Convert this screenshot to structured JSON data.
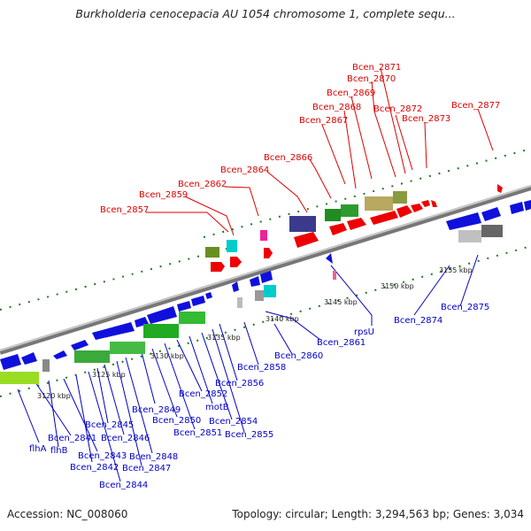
{
  "title": "Burkholderia cenocepacia AU 1054 chromosome 1, complete sequ...",
  "footer": {
    "accession": "Accession: NC_008060",
    "topology": "Topology: circular; Length: 3,294,563 bp; Genes: 3,034"
  },
  "colors": {
    "forward_label": "#dd0000",
    "reverse_label": "#0000cc",
    "backbone": "#909090",
    "tick": "#1e7a1e"
  },
  "kbp_ticks": [
    "3120 kbp",
    "3125 kbp",
    "3130 kbp",
    "3135 kbp",
    "3140 kbp",
    "3145 kbp",
    "3150 kbp",
    "3155 kbp"
  ],
  "forward_labels": [
    "Bcen_2857",
    "Bcen_2859",
    "Bcen_2862",
    "Bcen_2864",
    "Bcen_2866",
    "Bcen_2867",
    "Bcen_2868",
    "Bcen_2869",
    "Bcen_2870",
    "Bcen_2871",
    "Bcen_2872",
    "Bcen_2873",
    "Bcen_2877"
  ],
  "reverse_labels": [
    "flhA",
    "Bcen_2841",
    "flhB",
    "Bcen_2843",
    "Bcen_2842",
    "Bcen_2844",
    "Bcen_2845",
    "Bcen_2846",
    "Bcen_2847",
    "Bcen_2848",
    "Bcen_2849",
    "Bcen_2850",
    "Bcen_2851",
    "Bcen_2852",
    "motB",
    "Bcen_2854",
    "Bcen_2855",
    "Bcen_2856",
    "Bcen_2858",
    "Bcen_2860",
    "Bcen_2861",
    "rpsU",
    "Bcen_2874",
    "Bcen_2875"
  ]
}
